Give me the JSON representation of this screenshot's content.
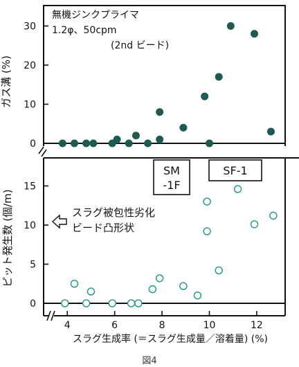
{
  "figure_label": "図4",
  "chart_data": [
    {
      "type": "scatter",
      "ylabel": "ガス溝 (%)",
      "ylim": [
        0,
        35
      ],
      "yticks": [
        0,
        10,
        20,
        30
      ],
      "annotation": [
        "無機ジンクプライマ",
        "1.2φ、50cpm",
        "(2nd ビード)"
      ],
      "marker": "filled",
      "color": "#1f5a52",
      "points": [
        {
          "x": 3.8,
          "y": 0
        },
        {
          "x": 4.3,
          "y": 0
        },
        {
          "x": 4.8,
          "y": 0
        },
        {
          "x": 5.1,
          "y": 0
        },
        {
          "x": 5.9,
          "y": 0
        },
        {
          "x": 6.1,
          "y": 1
        },
        {
          "x": 6.6,
          "y": 0
        },
        {
          "x": 6.9,
          "y": 2
        },
        {
          "x": 7.4,
          "y": 0
        },
        {
          "x": 7.9,
          "y": 8
        },
        {
          "x": 7.9,
          "y": 1
        },
        {
          "x": 8.9,
          "y": 4
        },
        {
          "x": 9.8,
          "y": 12
        },
        {
          "x": 10.0,
          "y": 0
        },
        {
          "x": 10.4,
          "y": 17
        },
        {
          "x": 10.9,
          "y": 30
        },
        {
          "x": 11.9,
          "y": 28
        },
        {
          "x": 12.6,
          "y": 3
        }
      ]
    },
    {
      "type": "scatter",
      "ylabel": "ピット発生数 (個/m)",
      "xlabel": "スラグ生成率 (＝スラグ生成量／溶着量) (%)",
      "ylim": [
        0,
        19
      ],
      "yticks": [
        0,
        5,
        10,
        15
      ],
      "xlim": [
        3,
        13.2
      ],
      "xticks": [
        4,
        6,
        8,
        10,
        12
      ],
      "marker": "open",
      "color": "#2e9a8c",
      "boxes": [
        "SM\n-1F",
        "SF-1"
      ],
      "annotation": [
        "スラグ被包性劣化",
        "ビード凸形状"
      ],
      "points": [
        {
          "x": 3.9,
          "y": 0
        },
        {
          "x": 4.3,
          "y": 2.5
        },
        {
          "x": 4.8,
          "y": 0
        },
        {
          "x": 5.0,
          "y": 1.5
        },
        {
          "x": 5.9,
          "y": 0
        },
        {
          "x": 6.7,
          "y": 0
        },
        {
          "x": 7.0,
          "y": 0
        },
        {
          "x": 7.6,
          "y": 1.8
        },
        {
          "x": 7.9,
          "y": 3.2
        },
        {
          "x": 8.9,
          "y": 2.2
        },
        {
          "x": 9.5,
          "y": 1.0
        },
        {
          "x": 9.9,
          "y": 13
        },
        {
          "x": 9.9,
          "y": 9.2
        },
        {
          "x": 10.4,
          "y": 4.2
        },
        {
          "x": 11.2,
          "y": 14.6
        },
        {
          "x": 11.9,
          "y": 10.1
        },
        {
          "x": 12.7,
          "y": 11.2
        }
      ]
    }
  ]
}
